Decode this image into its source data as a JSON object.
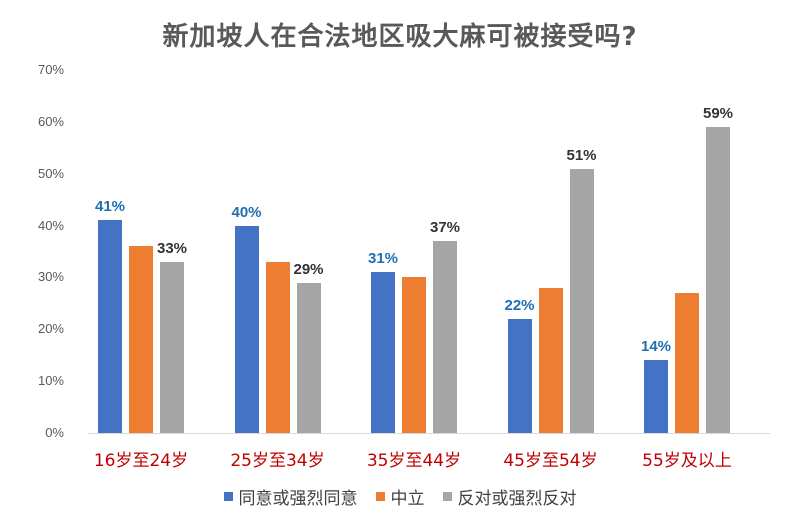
{
  "chart_data": {
    "type": "bar",
    "title": "新加坡人在合法地区吸大麻可被接受吗?",
    "xlabel": "",
    "ylabel": "",
    "ylim": [
      0,
      70
    ],
    "yticks": [
      "0%",
      "10%",
      "20%",
      "30%",
      "40%",
      "50%",
      "60%",
      "70%"
    ],
    "grid": false,
    "legend_position": "bottom",
    "categories": [
      "16岁至24岁",
      "25岁至34岁",
      "35岁至44岁",
      "45岁至54岁",
      "55岁及以上"
    ],
    "series": [
      {
        "name": "同意或强烈同意",
        "color": "#4472c4",
        "label_color": "#1f6fb0",
        "values": [
          41,
          40,
          31,
          22,
          14
        ],
        "labeled": true
      },
      {
        "name": "中立",
        "color": "#ed7d31",
        "values": [
          36,
          33,
          30,
          28,
          27
        ],
        "labeled": false
      },
      {
        "name": "反对或强烈反对",
        "color": "#a5a5a5",
        "label_color": "#333333",
        "values": [
          33,
          29,
          37,
          51,
          59
        ],
        "labeled": true
      }
    ]
  },
  "labels": {
    "agree": [
      "41%",
      "40%",
      "31%",
      "22%",
      "14%"
    ],
    "oppose": [
      "33%",
      "29%",
      "37%",
      "51%",
      "59%"
    ]
  }
}
